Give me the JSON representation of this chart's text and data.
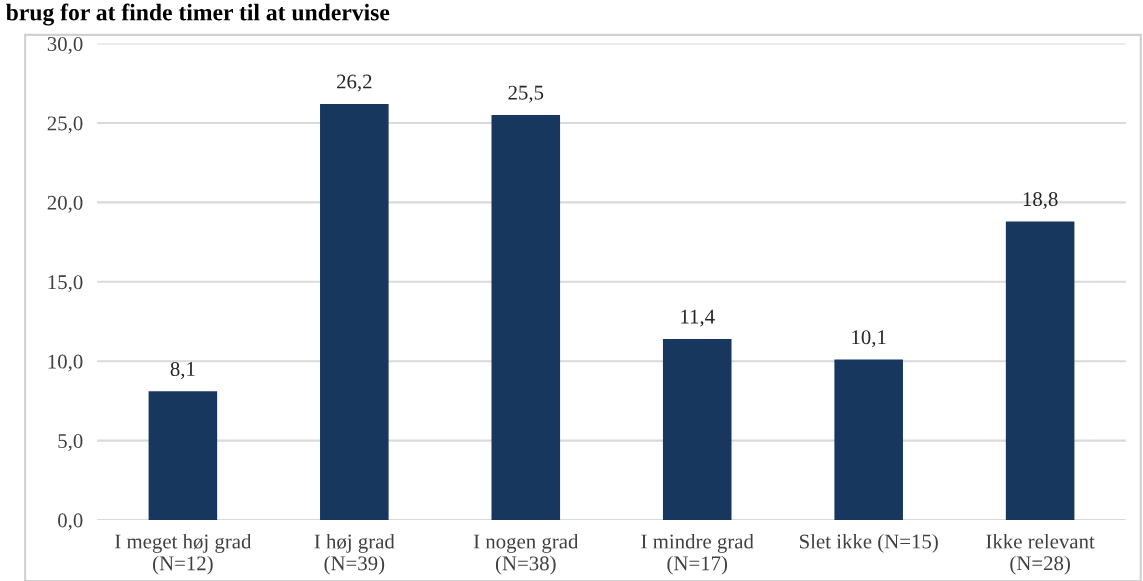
{
  "chart_data": {
    "type": "bar",
    "title": "brug for at finde timer til at undervise",
    "categories": [
      "I meget høj grad (N=12)",
      "I høj grad (N=39)",
      "I nogen grad (N=38)",
      "I mindre grad (N=17)",
      "Slet ikke (N=15)",
      "Ikke relevant (N=28)"
    ],
    "values": [
      8.1,
      26.2,
      25.5,
      11.4,
      10.1,
      18.8
    ],
    "value_labels": [
      "8,1",
      "26,2",
      "25,5",
      "11,4",
      "10,1",
      "18,8"
    ],
    "color": "#17375e",
    "ylim": [
      0,
      30
    ],
    "yticks": [
      {
        "value": 0,
        "label": "0,0"
      },
      {
        "value": 5,
        "label": "5,0"
      },
      {
        "value": 10,
        "label": "10,0"
      },
      {
        "value": 15,
        "label": "15,0"
      },
      {
        "value": 20,
        "label": "20,0"
      },
      {
        "value": 25,
        "label": "25,0"
      },
      {
        "value": 30,
        "label": "30,0"
      }
    ],
    "grid": "y",
    "legend": false
  }
}
